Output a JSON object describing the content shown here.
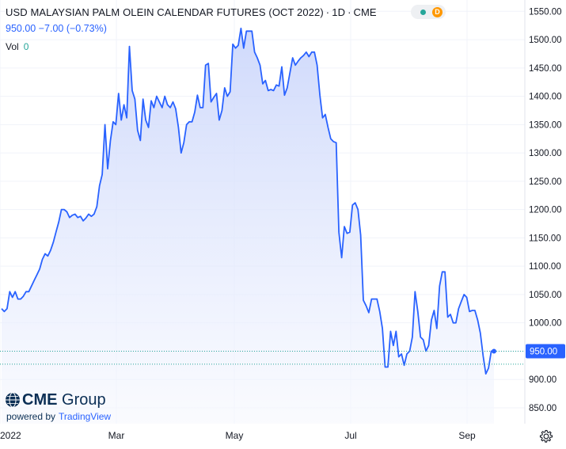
{
  "header": {
    "title": "USD MALAYSIAN PALM OLEIN CALENDAR FUTURES (OCT 2022)",
    "interval": "1D",
    "exchange": "CME",
    "status_badge": "D"
  },
  "quote": {
    "last": "950.00",
    "change": "−7.00",
    "change_pct": "(−0.73%)"
  },
  "volume": {
    "label": "Vol",
    "value": "0"
  },
  "branding": {
    "logo_bold": "CME",
    "logo_light": " Group",
    "powered_by": "powered by",
    "tradingview": "TradingView"
  },
  "colors": {
    "line": "#2962ff",
    "area_top": "#c7d3fb",
    "area_bottom": "#f6f8fe",
    "last_price_label_bg": "#2962ff",
    "dotted_line": "#26a69a",
    "grid": "#f0f3fa",
    "axis_text": "#131722"
  },
  "icons": {
    "settings": "gear-icon",
    "logo": "cme-globe-icon"
  },
  "chart_data": {
    "type": "area",
    "title": "USD MALAYSIAN PALM OLEIN CALENDAR FUTURES (OCT 2022)",
    "xlabel": "",
    "ylabel": "",
    "ylim": [
      822,
      1570
    ],
    "y_ticks": [
      850,
      900,
      950,
      1000,
      1050,
      1100,
      1150,
      1200,
      1250,
      1300,
      1350,
      1400,
      1450,
      1500,
      1550
    ],
    "x_tick_labels": [
      "2022",
      "Mar",
      "May",
      "Jul",
      "Sep"
    ],
    "last_price_label": "950.00",
    "series": [
      {
        "values": [
          1025,
          1020,
          1025,
          1055,
          1045,
          1055,
          1042,
          1042,
          1047,
          1055,
          1055,
          1065,
          1075,
          1085,
          1095,
          1112,
          1122,
          1118,
          1128,
          1142,
          1160,
          1178,
          1200,
          1200,
          1196,
          1186,
          1190,
          1192,
          1186,
          1188,
          1180,
          1185,
          1192,
          1188,
          1192,
          1205,
          1242,
          1262,
          1350,
          1272,
          1322,
          1355,
          1350,
          1405,
          1358,
          1385,
          1362,
          1488,
          1410,
          1395,
          1340,
          1322,
          1395,
          1358,
          1345,
          1392,
          1380,
          1400,
          1390,
          1380,
          1400,
          1385,
          1380,
          1390,
          1378,
          1345,
          1300,
          1318,
          1350,
          1355,
          1355,
          1372,
          1402,
          1380,
          1380,
          1455,
          1458,
          1390,
          1398,
          1405,
          1358,
          1375,
          1415,
          1400,
          1408,
          1492,
          1485,
          1490,
          1520,
          1485,
          1515,
          1515,
          1515,
          1478,
          1468,
          1455,
          1422,
          1428,
          1410,
          1412,
          1410,
          1420,
          1418,
          1452,
          1402,
          1415,
          1442,
          1468,
          1455,
          1462,
          1468,
          1472,
          1478,
          1470,
          1478,
          1478,
          1455,
          1402,
          1362,
          1368,
          1345,
          1325,
          1320,
          1318,
          1160,
          1115,
          1170,
          1158,
          1160,
          1208,
          1212,
          1200,
          1155,
          1040,
          1030,
          1018,
          1042,
          1042,
          1042,
          1020,
          990,
          922,
          922,
          985,
          960,
          985,
          940,
          945,
          925,
          945,
          950,
          975,
          1055,
          1020,
          975,
          970,
          950,
          960,
          1005,
          1022,
          990,
          1065,
          1090,
          1090,
          1010,
          1015,
          1000,
          1000,
          1025,
          1038,
          1050,
          1045,
          1020,
          1022,
          1022,
          1005,
          982,
          942,
          910,
          920,
          950,
          950
        ]
      }
    ]
  }
}
